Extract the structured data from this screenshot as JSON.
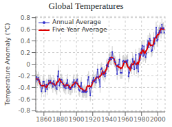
{
  "chart_data": {
    "type": "line",
    "title": "Global Temperatures",
    "ylabel": "Temperature Anomaly (°C)",
    "x": [
      1850,
      1851,
      1852,
      1853,
      1854,
      1855,
      1856,
      1857,
      1858,
      1859,
      1860,
      1861,
      1862,
      1863,
      1864,
      1865,
      1866,
      1867,
      1868,
      1869,
      1870,
      1871,
      1872,
      1873,
      1874,
      1875,
      1876,
      1877,
      1878,
      1879,
      1880,
      1881,
      1882,
      1883,
      1884,
      1885,
      1886,
      1887,
      1888,
      1889,
      1890,
      1891,
      1892,
      1893,
      1894,
      1895,
      1896,
      1897,
      1898,
      1899,
      1900,
      1901,
      1902,
      1903,
      1904,
      1905,
      1906,
      1907,
      1908,
      1909,
      1910,
      1911,
      1912,
      1913,
      1914,
      1915,
      1916,
      1917,
      1918,
      1919,
      1920,
      1921,
      1922,
      1923,
      1924,
      1925,
      1926,
      1927,
      1928,
      1929,
      1930,
      1931,
      1932,
      1933,
      1934,
      1935,
      1936,
      1937,
      1938,
      1939,
      1940,
      1941,
      1942,
      1943,
      1944,
      1945,
      1946,
      1947,
      1948,
      1949,
      1950,
      1951,
      1952,
      1953,
      1954,
      1955,
      1956,
      1957,
      1958,
      1959,
      1960,
      1961,
      1962,
      1963,
      1964,
      1965,
      1966,
      1967,
      1968,
      1969,
      1970,
      1971,
      1972,
      1973,
      1974,
      1975,
      1976,
      1977,
      1978,
      1979,
      1980,
      1981,
      1982,
      1983,
      1984,
      1985,
      1986,
      1987,
      1988,
      1989,
      1990,
      1991,
      1992,
      1993,
      1994,
      1995,
      1996,
      1997,
      1998,
      1999,
      2000,
      2001,
      2002,
      2003,
      2004,
      2005,
      2006,
      2007,
      2008
    ],
    "xlim": [
      1850,
      2009
    ],
    "xticks": [
      1860,
      1880,
      1900,
      1920,
      1940,
      1960,
      1980,
      2000
    ],
    "ylim": [
      -0.82,
      0.82
    ],
    "yticks": [
      -0.8,
      -0.6,
      -0.4,
      -0.2,
      0.0,
      0.2,
      0.4,
      0.6,
      0.8
    ],
    "grid": true,
    "legend": "upper left",
    "series": [
      {
        "name": "Annual Average",
        "color": "#3333cc",
        "marker": "circle",
        "values": [
          -0.3,
          -0.22,
          -0.27,
          -0.23,
          -0.27,
          -0.31,
          -0.36,
          -0.47,
          -0.41,
          -0.3,
          -0.3,
          -0.38,
          -0.47,
          -0.35,
          -0.43,
          -0.35,
          -0.28,
          -0.33,
          -0.28,
          -0.33,
          -0.32,
          -0.39,
          -0.29,
          -0.34,
          -0.37,
          -0.41,
          -0.43,
          -0.21,
          -0.12,
          -0.37,
          -0.32,
          -0.26,
          -0.27,
          -0.32,
          -0.37,
          -0.4,
          -0.36,
          -0.42,
          -0.33,
          -0.27,
          -0.41,
          -0.37,
          -0.43,
          -0.43,
          -0.4,
          -0.39,
          -0.31,
          -0.27,
          -0.39,
          -0.33,
          -0.29,
          -0.26,
          -0.34,
          -0.44,
          -0.46,
          -0.38,
          -0.32,
          -0.48,
          -0.46,
          -0.48,
          -0.45,
          -0.48,
          -0.48,
          -0.47,
          -0.27,
          -0.22,
          -0.42,
          -0.54,
          -0.4,
          -0.32,
          -0.28,
          -0.23,
          -0.3,
          -0.27,
          -0.32,
          -0.22,
          -0.09,
          -0.22,
          -0.27,
          -0.39,
          -0.09,
          -0.07,
          -0.14,
          -0.18,
          -0.13,
          -0.21,
          -0.16,
          -0.02,
          -0.0,
          -0.04,
          0.08,
          0.11,
          0.09,
          0.08,
          0.21,
          0.1,
          0.09,
          0.05,
          0.03,
          -0.02,
          -0.17,
          -0.01,
          -0.01,
          0.08,
          -0.15,
          -0.15,
          -0.15,
          0.05,
          0.06,
          0.03,
          0.03,
          0.06,
          0.04,
          0.07,
          -0.21,
          -0.15,
          -0.04,
          -0.01,
          -0.07,
          0.09,
          0.04,
          -0.09,
          0.01,
          0.16,
          -0.07,
          -0.01,
          -0.13,
          0.18,
          0.07,
          0.16,
          0.26,
          0.32,
          0.14,
          0.31,
          0.16,
          0.12,
          0.18,
          0.33,
          0.4,
          0.29,
          0.44,
          0.41,
          0.22,
          0.24,
          0.31,
          0.45,
          0.35,
          0.46,
          0.63,
          0.4,
          0.42,
          0.54,
          0.57,
          0.62,
          0.54,
          0.68,
          0.61,
          0.62,
          0.54
        ],
        "errors": [
          0.1,
          0.1,
          0.1,
          0.1,
          0.1,
          0.1,
          0.1,
          0.1,
          0.1,
          0.1,
          0.1,
          0.1,
          0.1,
          0.1,
          0.1,
          0.1,
          0.1,
          0.1,
          0.1,
          0.1,
          0.1,
          0.1,
          0.1,
          0.1,
          0.1,
          0.1,
          0.1,
          0.1,
          0.1,
          0.1,
          0.1,
          0.1,
          0.1,
          0.1,
          0.1,
          0.1,
          0.1,
          0.1,
          0.1,
          0.1,
          0.1,
          0.1,
          0.1,
          0.1,
          0.1,
          0.1,
          0.1,
          0.1,
          0.1,
          0.1,
          0.1,
          0.1,
          0.1,
          0.1,
          0.1,
          0.1,
          0.1,
          0.1,
          0.1,
          0.1,
          0.1,
          0.1,
          0.1,
          0.1,
          0.1,
          0.1,
          0.1,
          0.1,
          0.1,
          0.1,
          0.1,
          0.1,
          0.1,
          0.1,
          0.1,
          0.1,
          0.1,
          0.1,
          0.1,
          0.1,
          0.1,
          0.1,
          0.1,
          0.1,
          0.1,
          0.1,
          0.1,
          0.1,
          0.1,
          0.1,
          0.1,
          0.1,
          0.1,
          0.1,
          0.1,
          0.1,
          0.1,
          0.1,
          0.1,
          0.1,
          0.1,
          0.1,
          0.1,
          0.1,
          0.1,
          0.1,
          0.1,
          0.1,
          0.1,
          0.1,
          0.1,
          0.1,
          0.1,
          0.1,
          0.1,
          0.1,
          0.1,
          0.1,
          0.1,
          0.1,
          0.1,
          0.1,
          0.1,
          0.1,
          0.1,
          0.1,
          0.1,
          0.1,
          0.1,
          0.1,
          0.1,
          0.1,
          0.1,
          0.1,
          0.1,
          0.1,
          0.1,
          0.1,
          0.1,
          0.1,
          0.1,
          0.1,
          0.1,
          0.1,
          0.1,
          0.1,
          0.1,
          0.1,
          0.1,
          0.1,
          0.1,
          0.1,
          0.1,
          0.1,
          0.1,
          0.1,
          0.1,
          0.1,
          0.1
        ]
      },
      {
        "name": "Five Year Average",
        "color": "#dd0000",
        "values": [
          -0.2633333333333333,
          -0.255,
          -0.258,
          -0.26,
          -0.288,
          -0.328,
          -0.364,
          -0.37,
          -0.368,
          -0.372,
          -0.372,
          -0.36,
          -0.386,
          -0.396,
          -0.376,
          -0.348,
          -0.334,
          -0.314,
          -0.308,
          -0.33,
          -0.322,
          -0.334,
          -0.342,
          -0.36,
          -0.368,
          -0.352,
          -0.308,
          -0.308,
          -0.29,
          -0.256,
          -0.268,
          -0.308,
          -0.308,
          -0.324,
          -0.344,
          -0.374,
          -0.376,
          -0.356,
          -0.358,
          -0.36,
          -0.362,
          -0.382,
          -0.408,
          -0.404,
          -0.392,
          -0.36,
          -0.352,
          -0.338,
          -0.318,
          -0.308,
          -0.322,
          -0.332,
          -0.358,
          -0.376,
          -0.388,
          -0.416,
          -0.42,
          -0.424,
          -0.438,
          -0.47,
          -0.47,
          -0.472,
          -0.43,
          -0.384,
          -0.372,
          -0.384,
          -0.37,
          -0.38,
          -0.392,
          -0.354,
          -0.306,
          -0.28,
          -0.28,
          -0.268,
          -0.24,
          -0.224,
          -0.224,
          -0.238,
          -0.212,
          -0.208,
          -0.192,
          -0.174,
          -0.122,
          -0.146,
          -0.164,
          -0.14,
          -0.104,
          -0.086,
          -0.028,
          0.026,
          0.048,
          0.064,
          0.114,
          0.118,
          0.114,
          0.106,
          0.096,
          0.05,
          -0.004,
          -0.024,
          -0.036,
          -0.026,
          -0.052,
          -0.048,
          -0.076,
          -0.064,
          -0.068,
          -0.032,
          0.004,
          0.046,
          0.044,
          0.046,
          -0.002,
          -0.038,
          -0.058,
          -0.068,
          -0.096,
          -0.036,
          0.002,
          -0.008,
          -0.004,
          0.042,
          0.01,
          0.0,
          -0.008,
          0.026,
          0.008,
          0.054,
          0.108,
          0.198,
          0.19,
          0.238,
          0.238,
          0.21,
          0.182,
          0.22,
          0.238,
          0.264,
          0.328,
          0.374,
          0.352,
          0.32,
          0.324,
          0.326,
          0.314,
          0.362,
          0.44,
          0.458,
          0.452,
          0.49,
          0.512,
          0.51,
          0.538,
          0.59,
          0.604,
          0.614,
          0.598,
          0.6125,
          0.59
        ]
      }
    ]
  }
}
